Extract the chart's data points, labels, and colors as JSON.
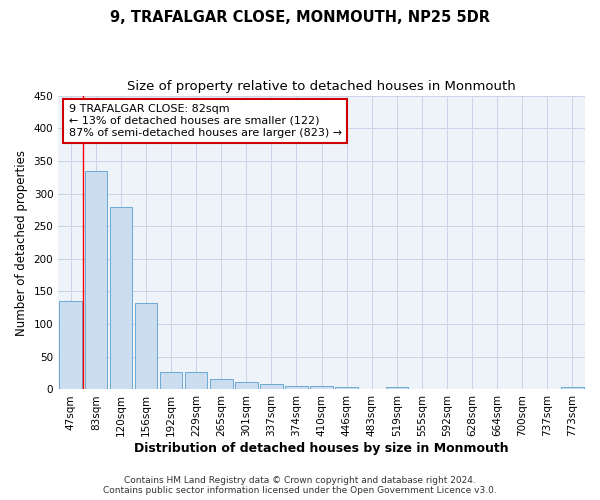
{
  "title": "9, TRAFALGAR CLOSE, MONMOUTH, NP25 5DR",
  "subtitle": "Size of property relative to detached houses in Monmouth",
  "xlabel": "Distribution of detached houses by size in Monmouth",
  "ylabel": "Number of detached properties",
  "categories": [
    "47sqm",
    "83sqm",
    "120sqm",
    "156sqm",
    "192sqm",
    "229sqm",
    "265sqm",
    "301sqm",
    "337sqm",
    "374sqm",
    "410sqm",
    "446sqm",
    "483sqm",
    "519sqm",
    "555sqm",
    "592sqm",
    "628sqm",
    "664sqm",
    "700sqm",
    "737sqm",
    "773sqm"
  ],
  "values": [
    135,
    335,
    280,
    133,
    26,
    26,
    16,
    12,
    8,
    6,
    5,
    3,
    0,
    4,
    0,
    0,
    0,
    0,
    0,
    0,
    4
  ],
  "bar_color": "#ccddf0",
  "bar_edge_color": "#6aaad4",
  "grid_color": "#c8d4e8",
  "background_color": "#eef2f9",
  "red_line_x": 0.5,
  "annotation_text": "9 TRAFALGAR CLOSE: 82sqm\n← 13% of detached houses are smaller (122)\n87% of semi-detached houses are larger (823) →",
  "annotation_box_color": "#ffffff",
  "annotation_box_edge": "#cc0000",
  "ylim": [
    0,
    450
  ],
  "yticks": [
    0,
    50,
    100,
    150,
    200,
    250,
    300,
    350,
    400,
    450
  ],
  "footer_line1": "Contains HM Land Registry data © Crown copyright and database right 2024.",
  "footer_line2": "Contains public sector information licensed under the Open Government Licence v3.0.",
  "title_fontsize": 10.5,
  "subtitle_fontsize": 9.5,
  "xlabel_fontsize": 9,
  "ylabel_fontsize": 8.5,
  "tick_fontsize": 7.5,
  "annot_fontsize": 8,
  "footer_fontsize": 6.5
}
